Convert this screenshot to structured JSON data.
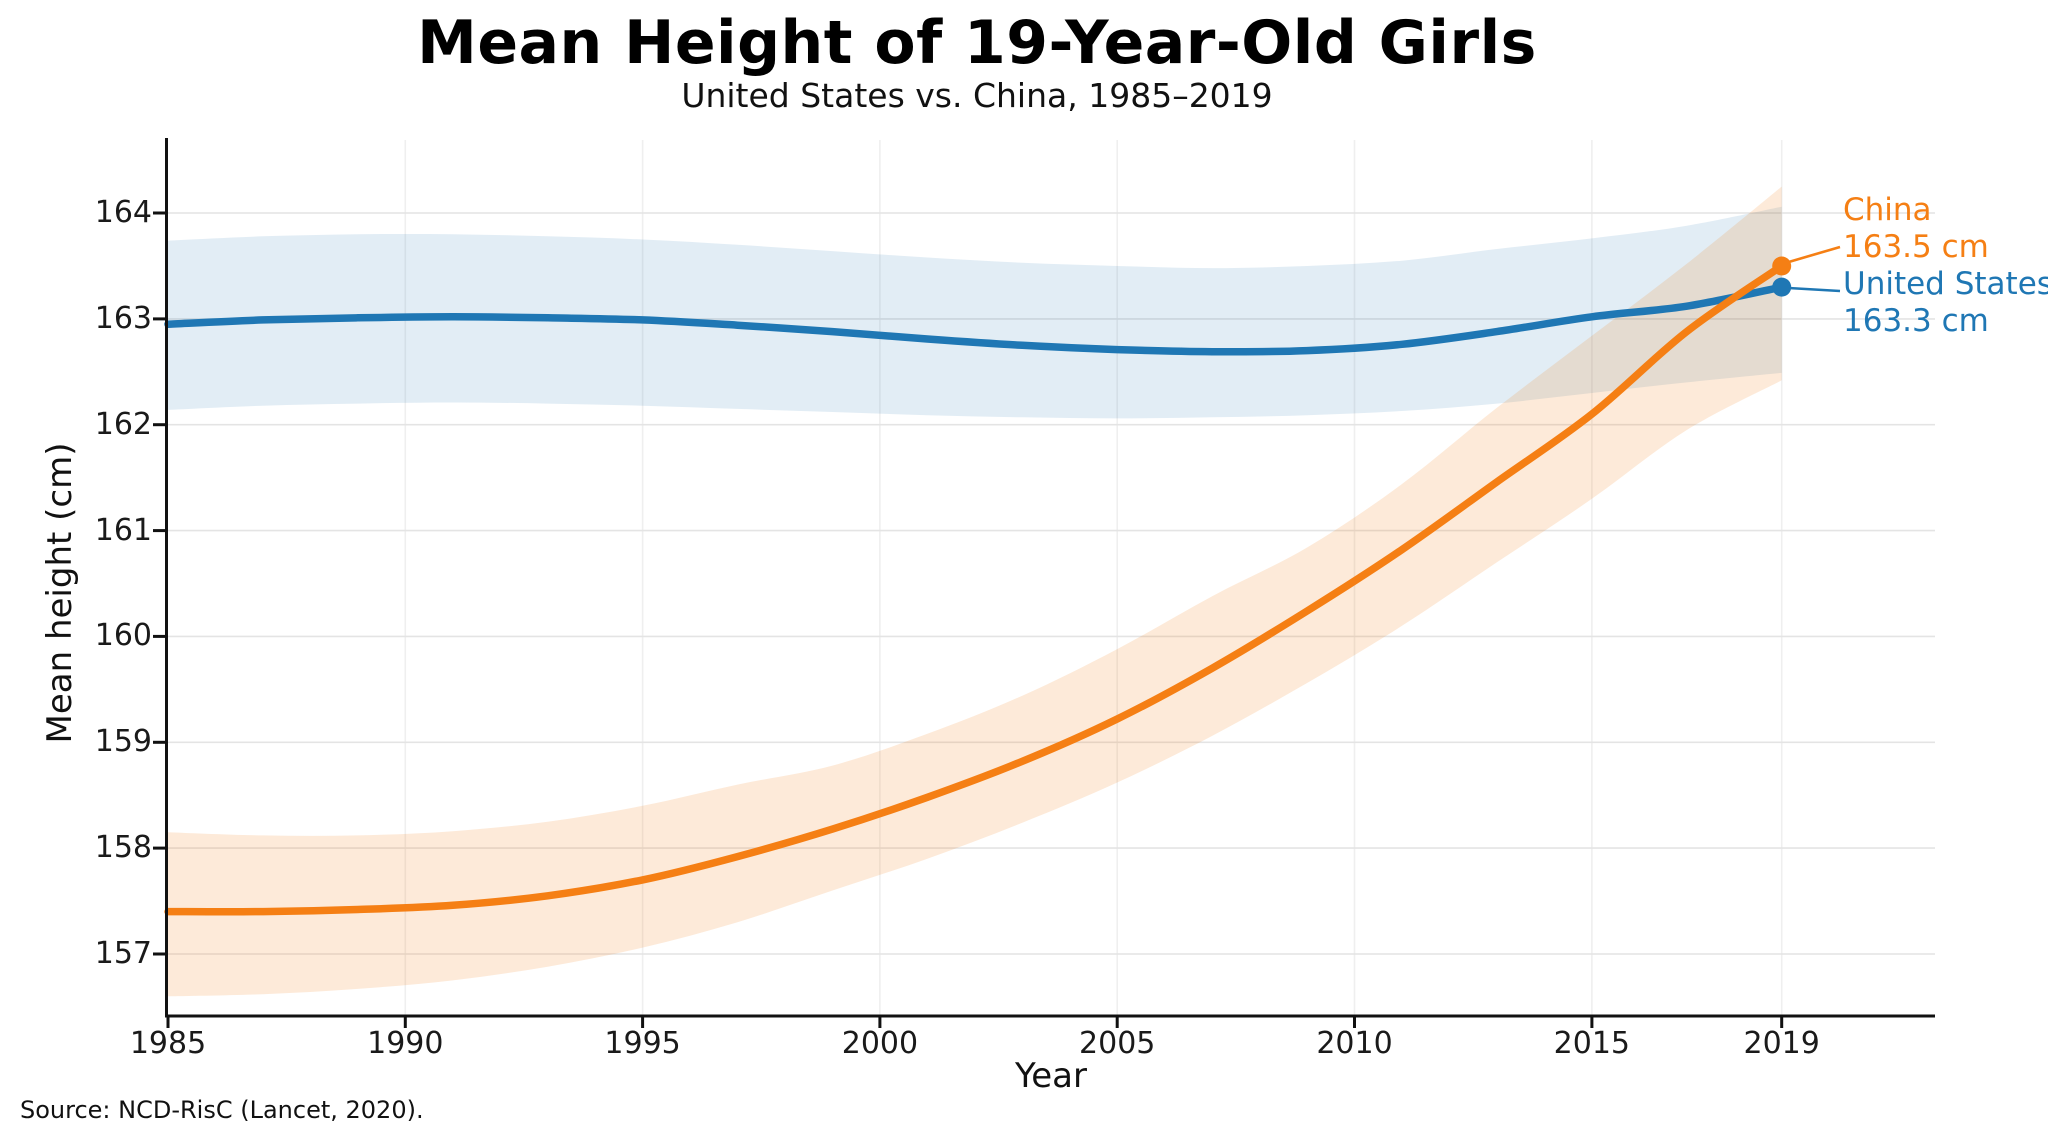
{
  "chart_data": {
    "type": "line",
    "title": "Mean Height of 19-Year-Old Girls",
    "subtitle": "United States vs. China, 1985–2019",
    "xlabel": "Year",
    "ylabel": "Mean height (cm)",
    "source": "Source: NCD-RisC (Lancet, 2020).",
    "grid": true,
    "legend_position": "end-of-line annotations",
    "xlim": [
      1985,
      2022.23
    ],
    "ylim": [
      156.414,
      164.69
    ],
    "xticks": [
      1985,
      1990,
      1995,
      2000,
      2005,
      2010,
      2015,
      2019
    ],
    "xtick_labels": [
      "1985",
      "1990",
      "1995",
      "2000",
      "2005",
      "2010",
      "2015",
      "2019"
    ],
    "yticks": [
      157,
      158,
      159,
      160,
      161,
      162,
      163,
      164
    ],
    "ytick_labels": [
      "157",
      "158",
      "159",
      "160",
      "161",
      "162",
      "163",
      "164"
    ],
    "x": [
      1985,
      1987,
      1989,
      1991,
      1993,
      1995,
      1997,
      1999,
      2001,
      2003,
      2005,
      2007,
      2009,
      2011,
      2013,
      2015,
      2017,
      2019
    ],
    "series": [
      {
        "name": "United States",
        "color": "#1f77b4",
        "band_color": "rgba(31,119,180,0.13)",
        "values": [
          162.95,
          162.99,
          163.01,
          163.02,
          163.01,
          162.99,
          162.94,
          162.88,
          162.81,
          162.75,
          162.71,
          162.69,
          162.7,
          162.76,
          162.88,
          163.02,
          163.12,
          163.3
        ],
        "band_lo": [
          162.14,
          162.18,
          162.2,
          162.21,
          162.2,
          162.18,
          162.15,
          162.12,
          162.09,
          162.07,
          162.06,
          162.07,
          162.09,
          162.13,
          162.2,
          162.3,
          162.4,
          162.49
        ],
        "band_hi": [
          163.74,
          163.78,
          163.8,
          163.8,
          163.78,
          163.75,
          163.7,
          163.64,
          163.58,
          163.53,
          163.5,
          163.48,
          163.5,
          163.55,
          163.66,
          163.76,
          163.88,
          164.06
        ],
        "end_value": 163.3
      },
      {
        "name": "China",
        "color": "#f57f14",
        "band_color": "rgba(245,127,20,0.16)",
        "values": [
          157.4,
          157.4,
          157.42,
          157.46,
          157.55,
          157.7,
          157.92,
          158.18,
          158.48,
          158.82,
          159.22,
          159.7,
          160.24,
          160.82,
          161.46,
          162.1,
          162.88,
          163.5
        ],
        "band_lo": [
          156.6,
          156.62,
          156.67,
          156.75,
          156.88,
          157.06,
          157.3,
          157.6,
          157.9,
          158.24,
          158.62,
          159.06,
          159.56,
          160.1,
          160.7,
          161.3,
          161.95,
          162.42
        ],
        "band_hi": [
          158.15,
          158.12,
          158.12,
          158.16,
          158.25,
          158.4,
          158.6,
          158.78,
          159.08,
          159.44,
          159.88,
          160.38,
          160.84,
          161.44,
          162.16,
          162.84,
          163.52,
          164.25
        ],
        "end_value": 163.5
      }
    ],
    "annotations": [
      {
        "series": "China",
        "label": "China",
        "value": "163.5 cm",
        "color": "#f57f14"
      },
      {
        "series": "United States",
        "label": "United States",
        "value": "163.3 cm",
        "color": "#1f77b4"
      }
    ]
  }
}
